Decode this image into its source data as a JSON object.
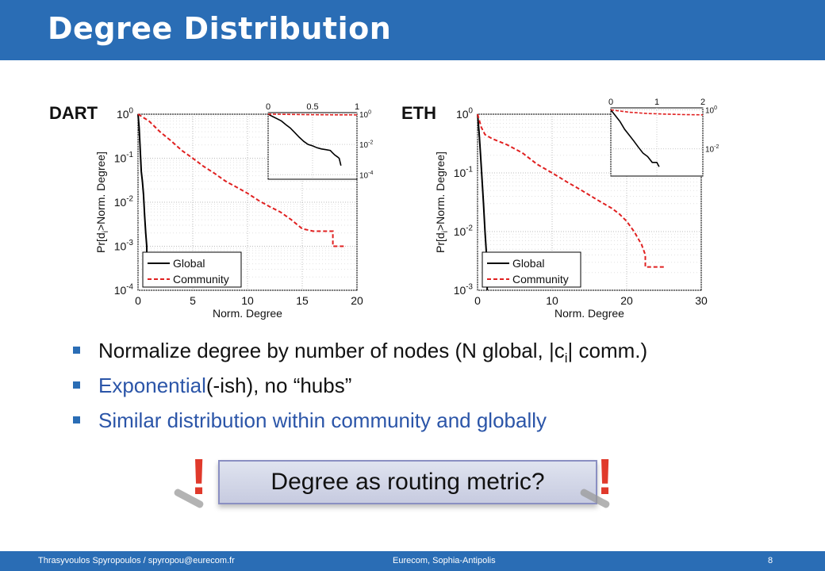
{
  "slide": {
    "title": "Degree Distribution",
    "accent_color": "#2a6db5",
    "footer_left": "Thrasyvoulos Spyropoulos / spyropou@eurecom.fr",
    "footer_center": "Eurecom, Sophia-Antipolis",
    "page_number": "8"
  },
  "bullets": [
    {
      "segments": [
        {
          "text": "Normalize degree by number of nodes (N global, |c",
          "color": "black"
        },
        {
          "text": "i",
          "color": "black",
          "sub": true
        },
        {
          "text": "| comm.)",
          "color": "black"
        }
      ]
    },
    {
      "segments": [
        {
          "text": "Exponential",
          "color": "blue"
        },
        {
          "text": "(-ish), no “hubs”",
          "color": "black"
        }
      ]
    },
    {
      "segments": [
        {
          "text": "Similar distribution within community and globally",
          "color": "blue"
        }
      ]
    }
  ],
  "callout": {
    "text": "Degree as routing metric?",
    "exclamation": "!"
  },
  "chart_data": [
    {
      "type": "line",
      "label": "DART",
      "xlabel": "Norm. Degree",
      "ylabel": "Pr[d_i>Norm. Degree]",
      "xlim": [
        0,
        20
      ],
      "ylim_log10": [
        -4,
        0
      ],
      "yscale": "log",
      "grid": true,
      "x_ticks": [
        "0",
        "5",
        "10",
        "15",
        "20"
      ],
      "y_ticks": [
        {
          "base": "10",
          "exp": "0"
        },
        {
          "base": "10",
          "exp": "-1"
        },
        {
          "base": "10",
          "exp": "-2"
        },
        {
          "base": "10",
          "exp": "-3"
        },
        {
          "base": "10",
          "exp": "-4"
        }
      ],
      "legend_position": "bottom-left",
      "series": [
        {
          "name": "Global",
          "style": "solid",
          "color": "#000000",
          "x": [
            0,
            0.1,
            0.2,
            0.3,
            0.4,
            0.5,
            0.6,
            0.7,
            0.8,
            0.8
          ],
          "y": [
            1,
            0.5,
            0.15,
            0.05,
            0.03,
            0.015,
            0.005,
            0.002,
            0.001,
            0.0006
          ]
        },
        {
          "name": "Community",
          "style": "dashed",
          "color": "#e02020",
          "x": [
            0,
            1,
            2,
            3,
            4,
            5,
            6,
            7,
            8,
            9,
            10,
            11,
            12,
            13,
            14,
            15,
            16,
            17,
            17.8,
            17.8,
            19
          ],
          "y": [
            1,
            0.7,
            0.4,
            0.25,
            0.15,
            0.1,
            0.065,
            0.045,
            0.03,
            0.022,
            0.016,
            0.011,
            0.008,
            0.006,
            0.004,
            0.0025,
            0.0022,
            0.0022,
            0.0022,
            0.001,
            0.001
          ]
        }
      ],
      "inset": {
        "x_ticks": [
          "0",
          "0.5",
          "1"
        ],
        "y_ticks": [
          {
            "base": "10",
            "exp": "0"
          },
          {
            "base": "10",
            "exp": "-2"
          },
          {
            "base": "10",
            "exp": "-4"
          }
        ],
        "xlim": [
          0,
          1
        ],
        "ylim_log10": [
          -4.3,
          0.1
        ],
        "series": [
          {
            "name": "Global",
            "style": "solid",
            "color": "#000000",
            "x": [
              0,
              0.05,
              0.1,
              0.15,
              0.2,
              0.25,
              0.3,
              0.35,
              0.4,
              0.45,
              0.5,
              0.55,
              0.6,
              0.65,
              0.7,
              0.72,
              0.75,
              0.78,
              0.8,
              0.82
            ],
            "y": [
              1,
              0.7,
              0.5,
              0.35,
              0.2,
              0.12,
              0.06,
              0.03,
              0.016,
              0.01,
              0.008,
              0.006,
              0.005,
              0.0045,
              0.004,
              0.003,
              0.002,
              0.0015,
              0.0012,
              0.0004
            ]
          },
          {
            "name": "Community",
            "style": "dashed",
            "color": "#e02020",
            "x": [
              0,
              0.2,
              0.4,
              0.6,
              0.8,
              1.0
            ],
            "y": [
              1,
              0.96,
              0.93,
              0.91,
              0.9,
              0.89
            ]
          }
        ]
      }
    },
    {
      "type": "line",
      "label": "ETH",
      "xlabel": "Norm. Degree",
      "ylabel": "Pr[d_i>Norm. Degree]",
      "xlim": [
        0,
        30
      ],
      "ylim_log10": [
        -3,
        0
      ],
      "yscale": "log",
      "grid": true,
      "x_ticks": [
        "0",
        "10",
        "20",
        "30"
      ],
      "y_ticks": [
        {
          "base": "10",
          "exp": "0"
        },
        {
          "base": "10",
          "exp": "-1"
        },
        {
          "base": "10",
          "exp": "-2"
        },
        {
          "base": "10",
          "exp": "-3"
        }
      ],
      "legend_position": "bottom-left",
      "series": [
        {
          "name": "Global",
          "style": "solid",
          "color": "#000000",
          "x": [
            0,
            0.2,
            0.4,
            0.6,
            0.8,
            1.0,
            1.2,
            1.3
          ],
          "y": [
            1,
            0.5,
            0.2,
            0.08,
            0.03,
            0.01,
            0.004,
            0.001
          ]
        },
        {
          "name": "Community",
          "style": "dashed",
          "color": "#e02020",
          "x": [
            0,
            0.5,
            1,
            2,
            4,
            6,
            8,
            10,
            12,
            14,
            16,
            18,
            19,
            20,
            21,
            22,
            22.5,
            22.5,
            25
          ],
          "y": [
            1,
            0.6,
            0.45,
            0.38,
            0.3,
            0.22,
            0.14,
            0.1,
            0.07,
            0.05,
            0.035,
            0.025,
            0.02,
            0.015,
            0.01,
            0.006,
            0.004,
            0.0025,
            0.0025
          ]
        }
      ],
      "inset": {
        "x_ticks": [
          "0",
          "1",
          "2"
        ],
        "y_ticks": [
          {
            "base": "10",
            "exp": "0"
          },
          {
            "base": "10",
            "exp": "-2"
          }
        ],
        "xlim": [
          0,
          2
        ],
        "ylim_log10": [
          -3.4,
          0.1
        ],
        "series": [
          {
            "name": "Global",
            "style": "solid",
            "color": "#000000",
            "x": [
              0,
              0.1,
              0.2,
              0.3,
              0.4,
              0.5,
              0.6,
              0.7,
              0.8,
              0.9,
              1.0,
              1.05
            ],
            "y": [
              1,
              0.5,
              0.25,
              0.1,
              0.05,
              0.025,
              0.012,
              0.006,
              0.004,
              0.002,
              0.002,
              0.0012
            ]
          },
          {
            "name": "Community",
            "style": "dashed",
            "color": "#e02020",
            "x": [
              0,
              0.4,
              0.8,
              1.2,
              1.6,
              2.0
            ],
            "y": [
              1,
              0.75,
              0.65,
              0.6,
              0.57,
              0.55
            ]
          }
        ]
      }
    }
  ]
}
